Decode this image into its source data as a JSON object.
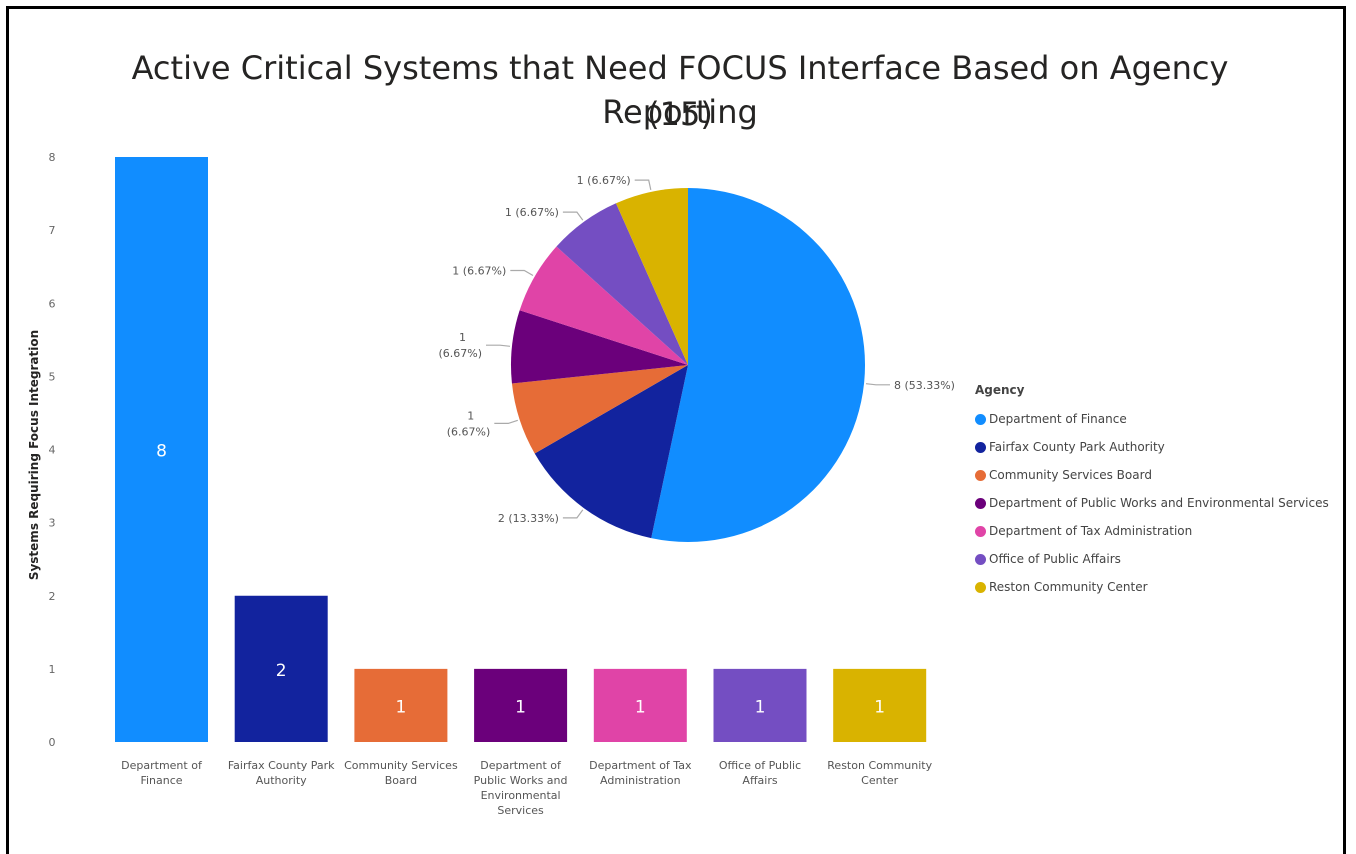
{
  "title_line1": "Active Critical Systems that Need FOCUS Interface Based on Agency Reporting",
  "title_line2": "(15)",
  "chart_data": [
    {
      "type": "bar",
      "categories": [
        "Department of Finance",
        "Fairfax County Park Authority",
        "Community Services Board",
        "Department of Public Works and Environmental Services",
        "Department of Tax Administration",
        "Office of Public Affairs",
        "Reston Community Center"
      ],
      "category_labels": [
        [
          "Department of",
          "Finance"
        ],
        [
          "Fairfax County Park",
          "Authority"
        ],
        [
          "Community Services",
          "Board"
        ],
        [
          "Department of",
          "Public Works and",
          "Environmental",
          "Services"
        ],
        [
          "Department of Tax",
          "Administration"
        ],
        [
          "Office of Public",
          "Affairs"
        ],
        [
          "Reston Community",
          "Center"
        ]
      ],
      "values": [
        8,
        2,
        1,
        1,
        1,
        1,
        1
      ],
      "colors": [
        "#118DFF",
        "#12239E",
        "#E66C37",
        "#6B007B",
        "#E044A7",
        "#744EC2",
        "#D9B300"
      ],
      "xlabel": "",
      "ylabel": "Systems Requiring Focus Integration",
      "ylim": [
        0,
        8
      ],
      "yticks": [
        0,
        1,
        2,
        3,
        4,
        5,
        6,
        7,
        8
      ],
      "grid": false
    },
    {
      "type": "pie",
      "categories": [
        "Department of Finance",
        "Fairfax County Park Authority",
        "Community Services Board",
        "Department of Public Works and Environmental Services",
        "Department of Tax Administration",
        "Office of Public Affairs",
        "Reston Community Center"
      ],
      "values": [
        8,
        2,
        1,
        1,
        1,
        1,
        1
      ],
      "percentages": [
        53.33,
        13.33,
        6.67,
        6.67,
        6.67,
        6.67,
        6.67
      ],
      "data_labels": [
        [
          "8 (53.33%)"
        ],
        [
          "2 (13.33%)"
        ],
        [
          "1",
          "(6.67%)"
        ],
        [
          "1",
          "(6.67%)"
        ],
        [
          "1 (6.67%)"
        ],
        [
          "1 (6.67%)"
        ],
        [
          "1 (6.67%)"
        ]
      ],
      "colors": [
        "#118DFF",
        "#12239E",
        "#E66C37",
        "#6B007B",
        "#E044A7",
        "#744EC2",
        "#D9B300"
      ],
      "legend_title": "Agency",
      "legend_position": "right"
    }
  ]
}
